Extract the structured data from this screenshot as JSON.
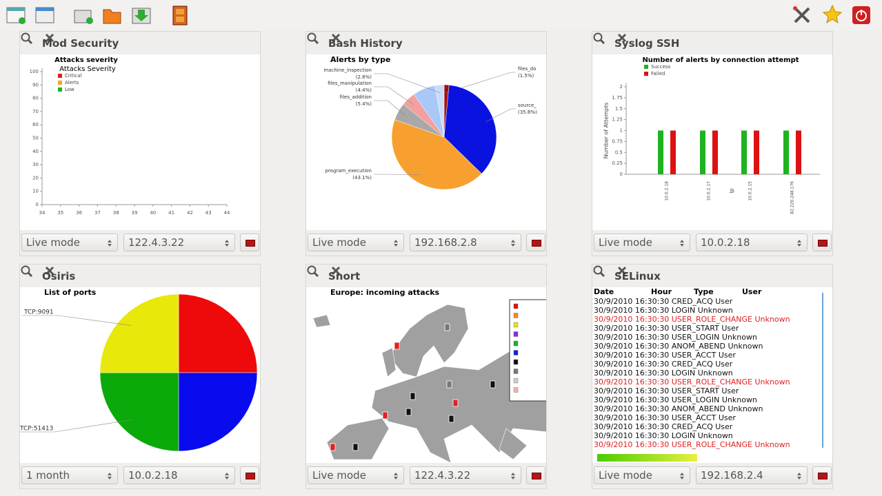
{
  "panels": [
    {
      "title": "Mod Security",
      "chart_data": {
        "type": "bar",
        "title": "Attacks severity",
        "subtitle": "Attacks Severity",
        "series": [
          {
            "name": "Critical",
            "color": "#e0201b",
            "values": []
          },
          {
            "name": "Alerts",
            "color": "#f5a623",
            "values": []
          },
          {
            "name": "Low",
            "color": "#1fb31f",
            "values": []
          }
        ],
        "xlim": [
          34,
          44
        ],
        "xticks": [
          34,
          35,
          36,
          37,
          38,
          39,
          40,
          41,
          42,
          43,
          44
        ],
        "ylim": [
          0,
          100
        ],
        "yticks": [
          0,
          10,
          20,
          30,
          40,
          50,
          60,
          70,
          80,
          90,
          100
        ]
      },
      "controls": {
        "mode": "Live mode",
        "target": "122.4.3.22"
      }
    },
    {
      "title": "Bash History",
      "chart_data": {
        "type": "pie",
        "title": "Alerts by type",
        "categories": [
          "files_do",
          "source_",
          "program_execution",
          "files_addition",
          "files_manipulation",
          null,
          "machine_inspection"
        ],
        "values": [
          1.5,
          35.8,
          43.1,
          5.4,
          4.4,
          7.0,
          2.8
        ],
        "value_labels": [
          "(1.5%)",
          "(35.8%)",
          "(43.1%)",
          "(5.4%)",
          "(4.4%)",
          null,
          "(2.8%)"
        ],
        "colors": [
          "#a01010",
          "#0a12e0",
          "#f7a030",
          "#a8a8a8",
          "#f3a0a0",
          "#a8c8f8",
          "#c8dcfa"
        ]
      },
      "controls": {
        "mode": "Live mode",
        "target": "192.168.2.8"
      }
    },
    {
      "title": "Syslog SSH",
      "chart_data": {
        "type": "bar",
        "title": "Number of alerts by connection attempt",
        "ylabel": "Number of Attempts",
        "xlabel": "ip",
        "categories": [
          "10.0.2.18",
          "10.0.2.17",
          "10.0.2.15",
          "82.220.248.176"
        ],
        "series": [
          {
            "name": "Success",
            "color": "#1fb31f",
            "values": [
              1,
              1,
              1,
              1
            ]
          },
          {
            "name": "Failed",
            "color": "#dd1111",
            "values": [
              1,
              1,
              1,
              1
            ]
          }
        ],
        "ylim": [
          0,
          2
        ],
        "yticks": [
          0,
          0.25,
          0.5,
          0.75,
          1,
          1.25,
          1.5,
          1.75,
          2
        ]
      },
      "controls": {
        "mode": "Live mode",
        "target": "10.0.2.18"
      }
    },
    {
      "title": "Osiris",
      "chart_data": {
        "type": "pie",
        "title": "List of ports",
        "categories": [
          null,
          null,
          "TCP:51413",
          "TCP:9091"
        ],
        "values": [
          25,
          25,
          25,
          25
        ],
        "colors": [
          "#ee0a0a",
          "#0a0aee",
          "#0aaa0a",
          "#e8e80a"
        ]
      },
      "controls": {
        "mode": "1 month",
        "target": "10.0.2.18"
      }
    },
    {
      "title": "Snort",
      "chart_data": {
        "type": "map",
        "title": "Europe: incoming attacks"
      },
      "controls": {
        "mode": "Live mode",
        "target": "122.4.3.22"
      }
    },
    {
      "title": "SELinux",
      "table": {
        "header": [
          "Date",
          "Hour",
          "Type",
          "User"
        ],
        "rows": [
          {
            "cells": [
              "30/9/2010",
              "16:30:30",
              "CRED_ACQ",
              "User"
            ],
            "color": "#111111"
          },
          {
            "cells": [
              "30/9/2010",
              "16:30:30",
              "LOGIN",
              "Unknown"
            ],
            "color": "#111111"
          },
          {
            "cells": [
              "30/9/2010",
              "16:30:30",
              "USER_ROLE_CHANGE",
              "Unknown"
            ],
            "color": "#e02020"
          },
          {
            "cells": [
              "30/9/2010",
              "16:30:30",
              "USER_START",
              "User"
            ],
            "color": "#111111"
          },
          {
            "cells": [
              "30/9/2010",
              "16:30:30",
              "USER_LOGIN",
              "Unknown"
            ],
            "color": "#111111"
          },
          {
            "cells": [
              "30/9/2010",
              "16:30:30",
              "ANOM_ABEND",
              "Unknown"
            ],
            "color": "#111111"
          },
          {
            "cells": [
              "30/9/2010",
              "16:30:30",
              "USER_ACCT",
              "User"
            ],
            "color": "#111111"
          },
          {
            "cells": [
              "30/9/2010",
              "16:30:30",
              "CRED_ACQ",
              "User"
            ],
            "color": "#111111"
          },
          {
            "cells": [
              "30/9/2010",
              "16:30:30",
              "LOGIN",
              "Unknown"
            ],
            "color": "#111111"
          },
          {
            "cells": [
              "30/9/2010",
              "16:30:30",
              "USER_ROLE_CHANGE",
              "Unknown"
            ],
            "color": "#e02020"
          },
          {
            "cells": [
              "30/9/2010",
              "16:30:30",
              "USER_START",
              "User"
            ],
            "color": "#111111"
          },
          {
            "cells": [
              "30/9/2010",
              "16:30:30",
              "USER_LOGIN",
              "Unknown"
            ],
            "color": "#111111"
          },
          {
            "cells": [
              "30/9/2010",
              "16:30:30",
              "ANOM_ABEND",
              "Unknown"
            ],
            "color": "#111111"
          },
          {
            "cells": [
              "30/9/2010",
              "16:30:30",
              "USER_ACCT",
              "User"
            ],
            "color": "#111111"
          },
          {
            "cells": [
              "30/9/2010",
              "16:30:30",
              "CRED_ACQ",
              "User"
            ],
            "color": "#111111"
          },
          {
            "cells": [
              "30/9/2010",
              "16:30:30",
              "LOGIN",
              "Unknown"
            ],
            "color": "#111111"
          },
          {
            "cells": [
              "30/9/2010",
              "16:30:30",
              "USER_ROLE_CHANGE",
              "Unknown"
            ],
            "color": "#e02020"
          }
        ]
      },
      "controls": {
        "mode": "Live mode",
        "target": "192.168.2.4"
      }
    }
  ]
}
